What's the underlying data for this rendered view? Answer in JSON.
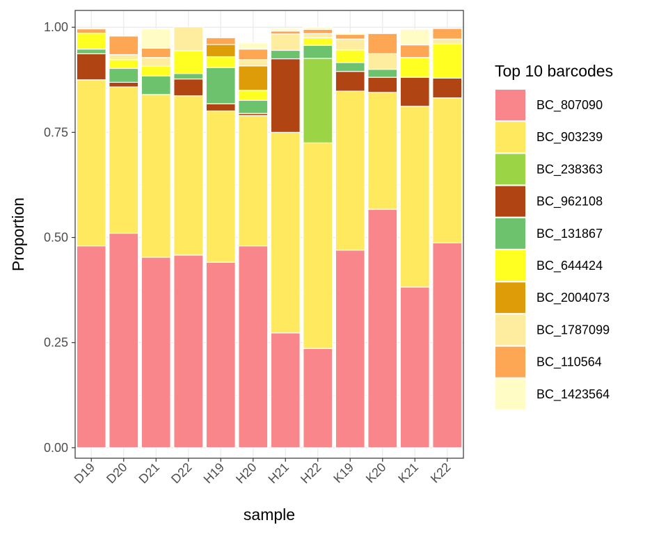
{
  "chart_data": {
    "type": "bar",
    "stacked": true,
    "xlabel": "sample",
    "ylabel": "Proportion",
    "ylim": [
      -0.025,
      1.04
    ],
    "yticks": [
      "0.00",
      "0.25",
      "0.50",
      "0.75",
      "1.00"
    ],
    "ytick_values": [
      0,
      0.25,
      0.5,
      0.75,
      1.0
    ],
    "grid": true,
    "legend_title": "Top 10 barcodes",
    "legend_position": "right",
    "categories": [
      "D19",
      "D20",
      "D21",
      "D22",
      "H19",
      "H20",
      "H21",
      "H22",
      "K19",
      "K20",
      "K21",
      "K22"
    ],
    "series": [
      {
        "name": "BC_807090",
        "color": "#F8868A",
        "values": [
          0.48,
          0.51,
          0.453,
          0.458,
          0.441,
          0.48,
          0.273,
          0.236,
          0.47,
          0.567,
          0.382,
          0.487
        ]
      },
      {
        "name": "BC_903239",
        "color": "#FEE95F",
        "values": [
          0.395,
          0.348,
          0.387,
          0.379,
          0.36,
          0.31,
          0.477,
          0.489,
          0.378,
          0.278,
          0.43,
          0.345
        ]
      },
      {
        "name": "BC_238363",
        "color": "#9BD545",
        "values": [
          0,
          0,
          0,
          0,
          0,
          0,
          0,
          0.201,
          0,
          0,
          0,
          0
        ]
      },
      {
        "name": "BC_962108",
        "color": "#B04513",
        "values": [
          0.062,
          0.011,
          0,
          0.04,
          0.017,
          0.005,
          0.175,
          0,
          0.047,
          0.036,
          0.069,
          0.047
        ]
      },
      {
        "name": "BC_131867",
        "color": "#6DC26D",
        "values": [
          0.011,
          0.033,
          0.044,
          0.013,
          0.086,
          0.031,
          0.02,
          0.031,
          0.021,
          0.019,
          0,
          0
        ]
      },
      {
        "name": "BC_644424",
        "color": "#FFFF21",
        "values": [
          0.038,
          0.021,
          0.023,
          0.054,
          0.026,
          0.024,
          0,
          0.018,
          0.03,
          0,
          0.047,
          0.081
        ]
      },
      {
        "name": "BC_2004073",
        "color": "#DE9D08",
        "values": [
          0,
          0,
          0,
          0,
          0.029,
          0.058,
          0,
          0,
          0,
          0,
          0,
          0
        ]
      },
      {
        "name": "BC_1787099",
        "color": "#FEED9E",
        "values": [
          0,
          0.012,
          0.021,
          0.057,
          0,
          0.015,
          0.039,
          0.01,
          0.026,
          0.037,
          0,
          0.012
        ]
      },
      {
        "name": "BC_110564",
        "color": "#FDA653",
        "values": [
          0.01,
          0.044,
          0.022,
          0,
          0.016,
          0.025,
          0.007,
          0.01,
          0.011,
          0.048,
          0.03,
          0.025
        ]
      },
      {
        "name": "BC_1423564",
        "color": "#FFFDC5",
        "values": [
          0,
          0,
          0.046,
          0,
          0,
          0.015,
          0.006,
          0.005,
          0.003,
          0,
          0.037,
          0
        ]
      }
    ]
  }
}
